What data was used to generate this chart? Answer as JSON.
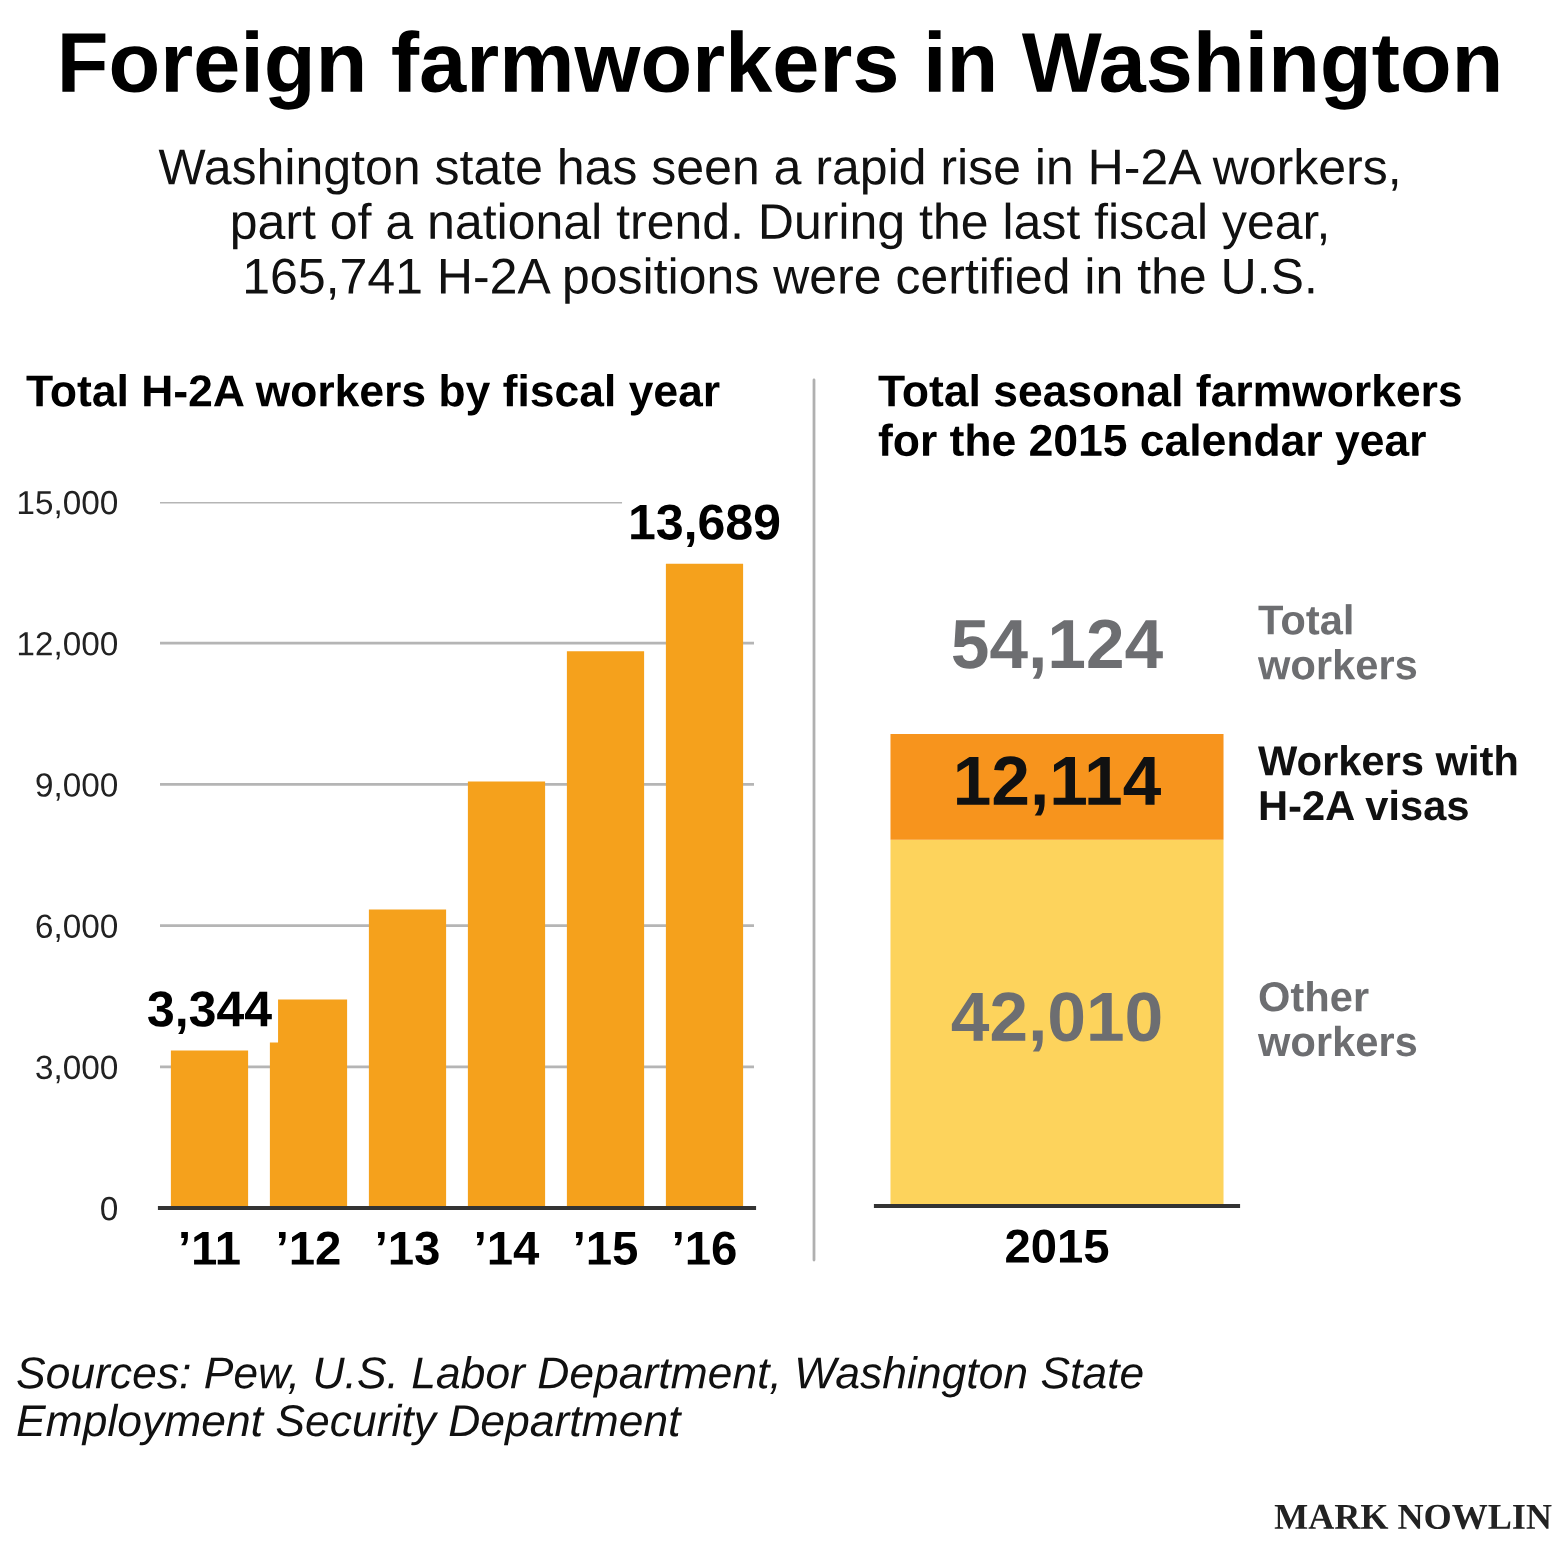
{
  "chart_data": [
    {
      "type": "other",
      "title": "Foreign farmworkers in Washington",
      "subtitle": "Washington state has seen a rapid rise in H-2A workers,\npart of a national trend. During the last fiscal year,\n165,741 H-2A positions were certified in the U.S.",
      "annotations": [
        "Sources: Pew, U.S. Labor Department, Washington State\nEmployment Security Department",
        "MARK NOWLIN"
      ]
    },
    {
      "type": "bar",
      "title": "Total H-2A workers by fiscal year",
      "categories": [
        "’11",
        "’12",
        "’13",
        "’14",
        "’15",
        "’16"
      ],
      "values": [
        3344,
        4430,
        6340,
        9060,
        11830,
        13689
      ],
      "color": "#f5a11c",
      "value_labels": [
        "3,344",
        null,
        null,
        null,
        null,
        "13,689"
      ],
      "ylim": [
        0,
        15000
      ],
      "yticks": [
        0,
        {
          "value": 3000,
          "label": "3,000"
        },
        {
          "value": 6000,
          "label": "6,000"
        },
        {
          "value": 9000,
          "label": "9,000"
        },
        {
          "value": 12000,
          "label": "12,000"
        },
        {
          "value": 15000,
          "label": "15,000"
        }
      ],
      "grid": "y"
    },
    {
      "type": "bar",
      "title": "Total seasonal farmworkers\nfor the 2015 calendar year",
      "categories": [
        "2015"
      ],
      "stacked": true,
      "tick_labels": "x",
      "series": [
        {
          "name": "Other\nworkers",
          "color": "#fdd35c",
          "values": [
            42010
          ],
          "value_labels": [
            "42,010"
          ]
        },
        {
          "name": "Workers with\nH-2A visas",
          "color": "#f7941d",
          "values": [
            12114
          ],
          "value_labels": [
            "12,114"
          ]
        }
      ],
      "totals": [
        "54,124"
      ],
      "annotations": [
        "Total\nworkers"
      ]
    }
  ]
}
